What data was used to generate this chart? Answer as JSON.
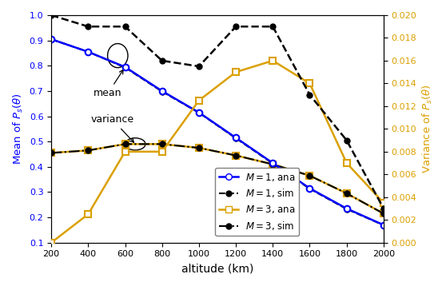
{
  "altitude": [
    200,
    400,
    600,
    800,
    1000,
    1200,
    1400,
    1600,
    1800,
    2000
  ],
  "mean_M1_ana": [
    0.905,
    0.855,
    0.795,
    0.7,
    0.615,
    0.515,
    0.415,
    0.315,
    0.235,
    0.17
  ],
  "mean_M1_sim": [
    0.905,
    0.855,
    0.793,
    0.698,
    0.614,
    0.513,
    0.413,
    0.313,
    0.233,
    0.169
  ],
  "mean_M3_ana": [
    0.455,
    0.465,
    0.49,
    0.49,
    0.475,
    0.445,
    0.41,
    0.365,
    0.295,
    0.215
  ],
  "mean_M3_sim": [
    0.455,
    0.465,
    0.49,
    0.49,
    0.475,
    0.445,
    0.41,
    0.365,
    0.295,
    0.215
  ],
  "var_M3_ana": [
    0.0,
    0.0025,
    0.008,
    0.008,
    0.0125,
    0.015,
    0.016,
    0.014,
    0.007,
    0.0035
  ],
  "var_M3_sim": [
    0.02,
    0.019,
    0.019,
    0.016,
    0.0155,
    0.019,
    0.019,
    0.013,
    0.009,
    0.003
  ],
  "xlabel": "altitude (km)",
  "ylabel_left": "Mean of $P_s(\\theta)$",
  "ylabel_right": "Variance of $P_s(\\theta)$",
  "xlim": [
    200,
    2000
  ],
  "ylim_left": [
    0.1,
    1.0
  ],
  "ylim_right": [
    0,
    0.02
  ],
  "color_blue": "#0000FF",
  "color_black": "#000000",
  "color_orange": "#DAA000",
  "legend_entries": [
    "$M=1$, ana",
    "$M=1$, sim",
    "$M=3$, ana",
    "$M=3$, sim"
  ],
  "xticks": [
    200,
    400,
    600,
    800,
    1000,
    1200,
    1400,
    1600,
    1800,
    2000
  ],
  "yticks_left": [
    0.1,
    0.2,
    0.3,
    0.4,
    0.5,
    0.6,
    0.7,
    0.8,
    0.9,
    1.0
  ],
  "yticks_right": [
    0,
    0.002,
    0.004,
    0.006,
    0.008,
    0.01,
    0.012,
    0.014,
    0.016,
    0.018,
    0.02
  ]
}
